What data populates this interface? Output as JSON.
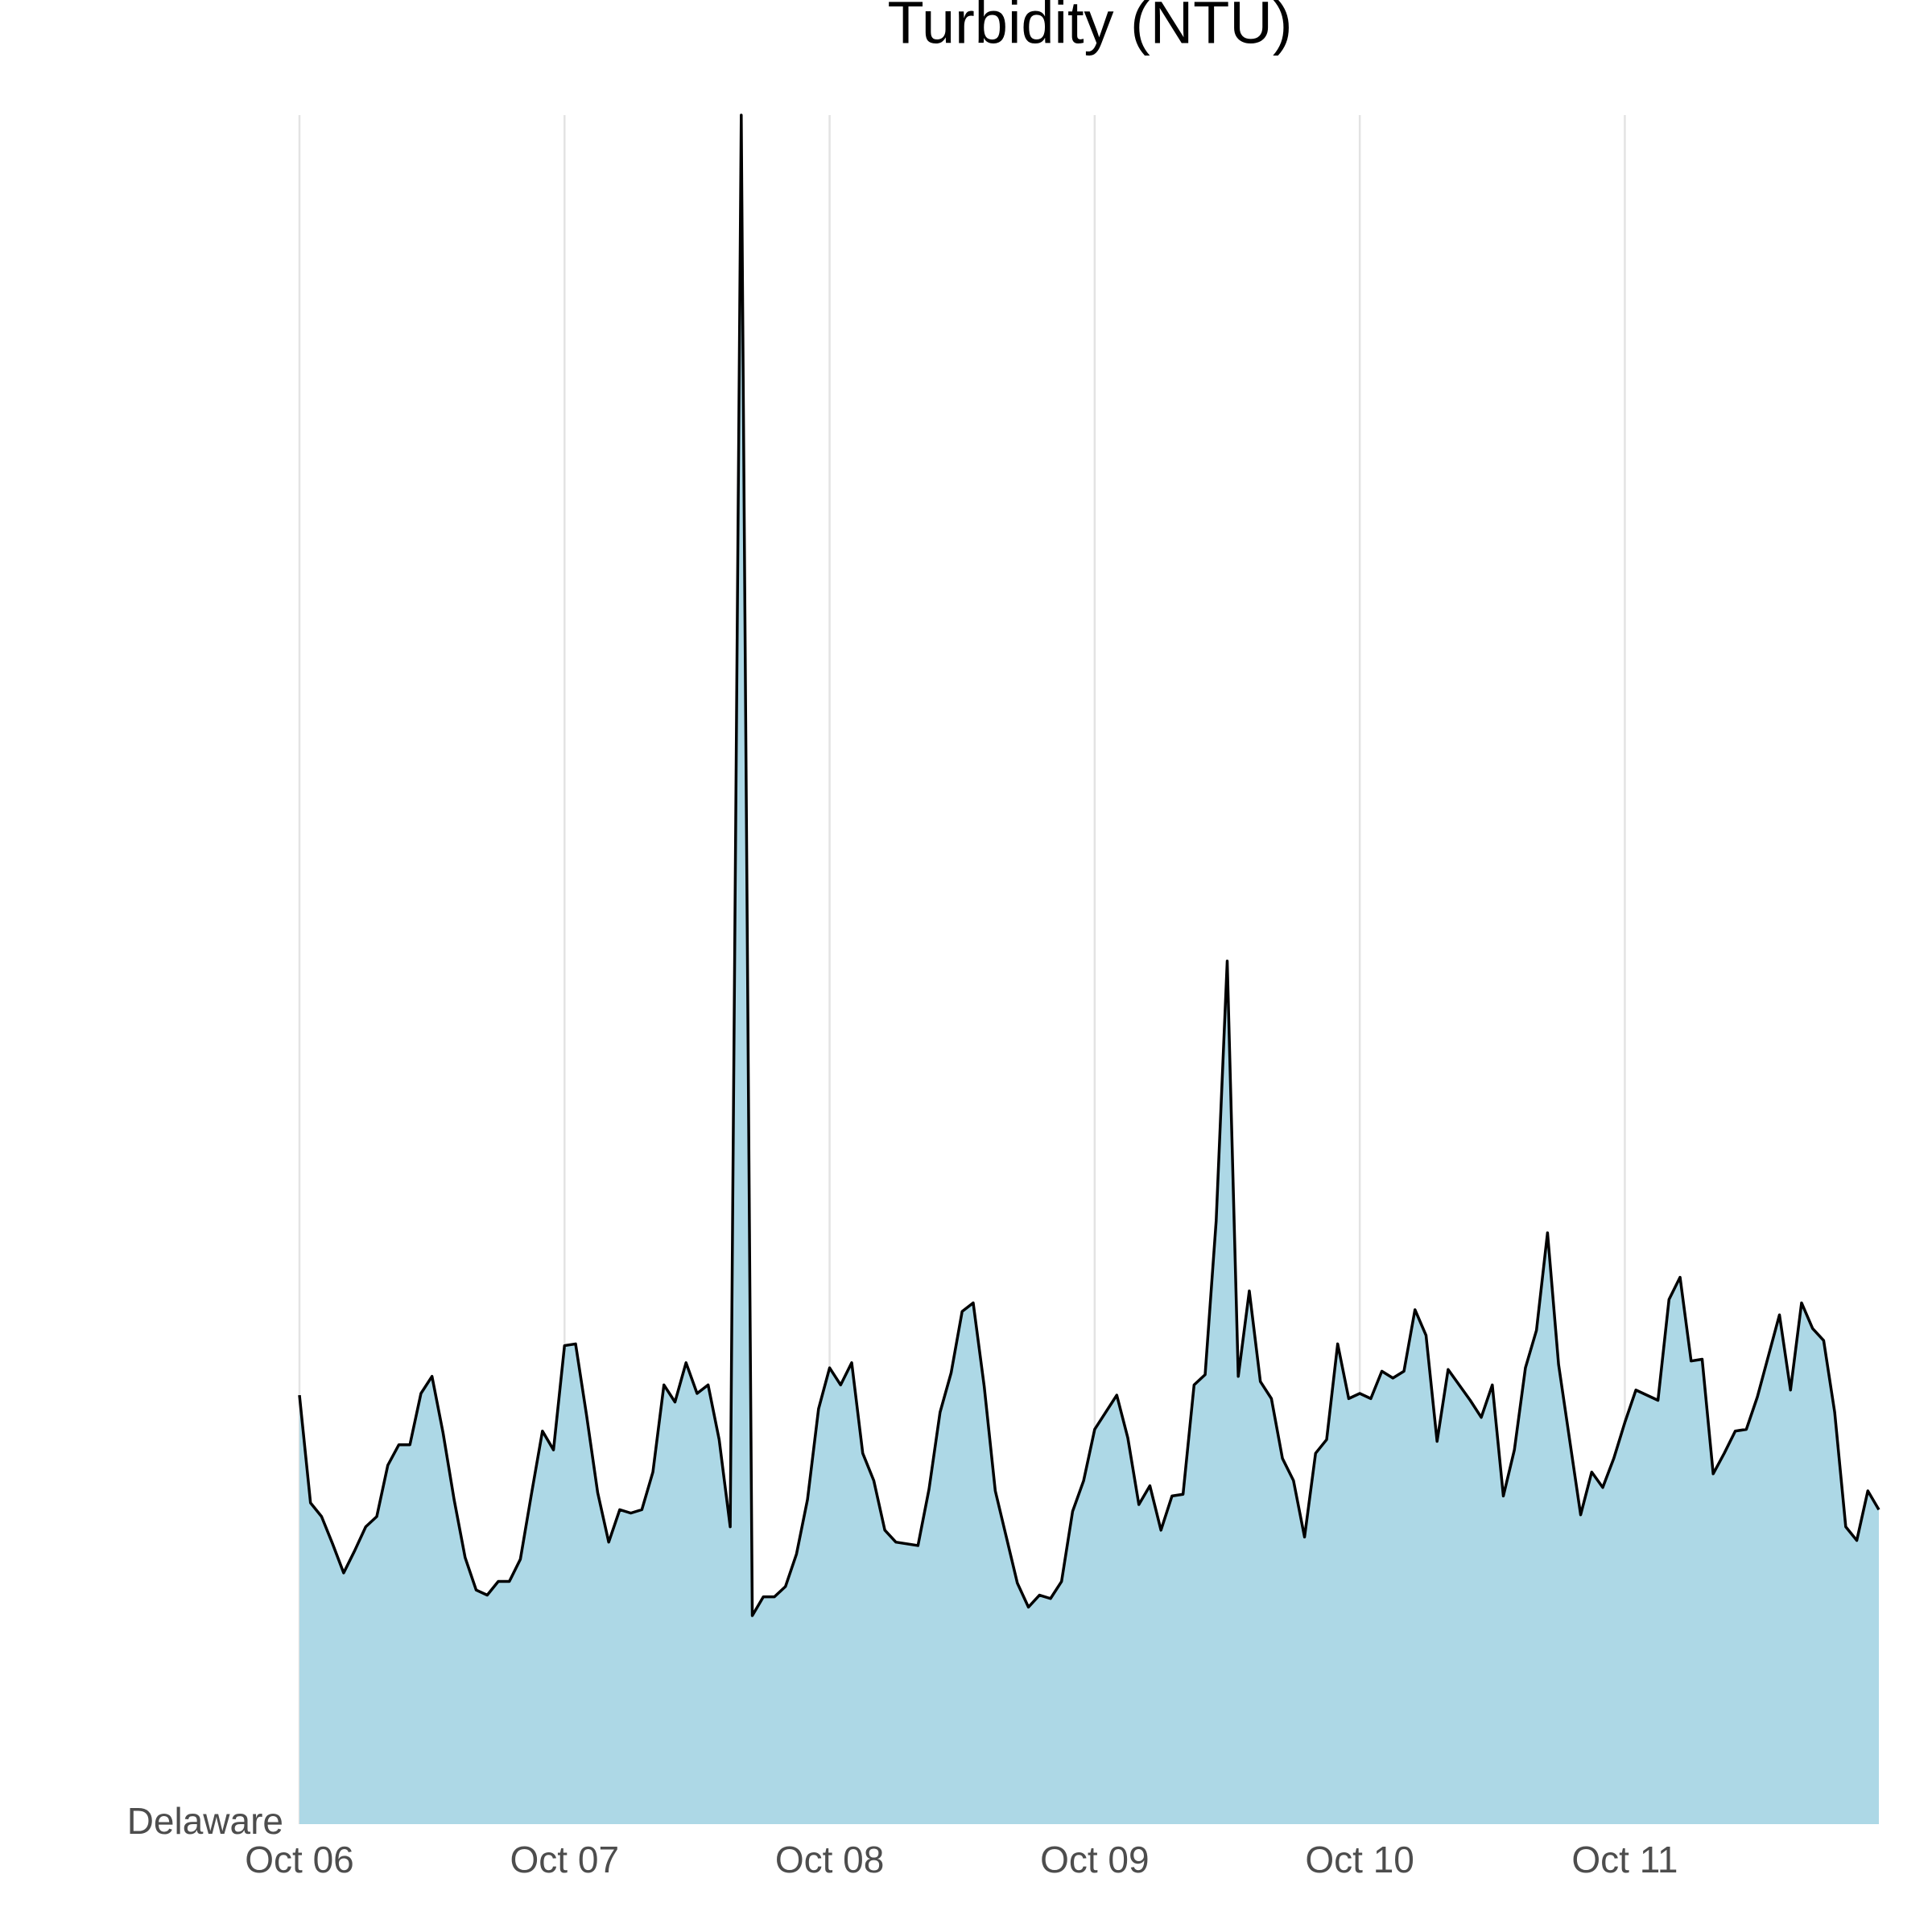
{
  "chart_data": {
    "type": "area",
    "title": "Turbidity (NTU)",
    "x": [
      0,
      1,
      2,
      3,
      4,
      5,
      6,
      7,
      8,
      9,
      10,
      11,
      12,
      13,
      14,
      15,
      16,
      17,
      18,
      19,
      20,
      21,
      22,
      23,
      24,
      25,
      26,
      27,
      28,
      29,
      30,
      31,
      32,
      33,
      34,
      35,
      36,
      37,
      38,
      39,
      40,
      41,
      42,
      43,
      44,
      45,
      46,
      47,
      48,
      49,
      50,
      51,
      52,
      53,
      54,
      55,
      56,
      57,
      58,
      59,
      60,
      61,
      62,
      63,
      64,
      65,
      66,
      67,
      68,
      69,
      70,
      71,
      72,
      73,
      74,
      75,
      76,
      77,
      78,
      79,
      80,
      81,
      82,
      83,
      84,
      85,
      86,
      87,
      88,
      89,
      90,
      91,
      92,
      93,
      94,
      95,
      96,
      97,
      98,
      99,
      100,
      101,
      102,
      103,
      104,
      105,
      106,
      107,
      108,
      109,
      110,
      111,
      112,
      113,
      114,
      115,
      116,
      117,
      118,
      119,
      120,
      121,
      122,
      123,
      124,
      125,
      126,
      127,
      128,
      129,
      130,
      131,
      132,
      133,
      134,
      135,
      136,
      137,
      138,
      139,
      140,
      141,
      142,
      143
    ],
    "series": [
      {
        "name": "Delaware",
        "color": "#add8e6",
        "line_color": "#000000",
        "values": [
          25.1,
          18.8,
          18.0,
          16.4,
          14.7,
          16.0,
          17.4,
          18.0,
          21.0,
          22.2,
          22.2,
          25.2,
          26.2,
          22.9,
          19.0,
          15.6,
          13.7,
          13.4,
          14.2,
          14.2,
          15.5,
          19.3,
          23.0,
          21.9,
          28.0,
          28.1,
          23.9,
          19.4,
          16.5,
          18.4,
          18.2,
          18.4,
          20.6,
          25.7,
          24.7,
          27.0,
          25.2,
          25.7,
          22.5,
          17.4,
          100,
          12.2,
          13.3,
          13.3,
          13.9,
          15.8,
          19.0,
          24.3,
          26.7,
          25.7,
          27.0,
          21.7,
          20.1,
          17.2,
          16.5,
          16.4,
          16.3,
          19.6,
          24.1,
          26.4,
          30.0,
          30.5,
          25.6,
          19.5,
          16.8,
          14.1,
          12.7,
          13.4,
          13.2,
          14.2,
          18.3,
          20.1,
          23.1,
          24.1,
          25.1,
          22.6,
          18.7,
          19.8,
          17.2,
          19.2,
          19.3,
          25.7,
          26.3,
          35.3,
          50.5,
          26.2,
          31.2,
          25.9,
          24.9,
          21.4,
          20.1,
          16.8,
          21.7,
          22.5,
          28.1,
          24.9,
          25.2,
          24.9,
          26.5,
          26.1,
          26.5,
          30.1,
          28.6,
          22.4,
          26.6,
          25.7,
          24.8,
          23.8,
          25.7,
          19.2,
          21.9,
          26.7,
          28.9,
          34.6,
          26.9,
          22.5,
          18.1,
          20.6,
          19.7,
          21.4,
          23.5,
          25.4,
          25.1,
          24.8,
          30.7,
          32.0,
          27.1,
          27.2,
          20.5,
          21.7,
          23.0,
          23.1,
          25.0,
          27.4,
          29.8,
          25.4,
          30.5,
          29.0,
          28.3,
          24.1,
          17.4,
          16.6,
          19.5,
          18.4
        ]
      }
    ],
    "xlim": [
      0,
      143
    ],
    "xticks": [
      {
        "value": 0,
        "label": "Oct 06"
      },
      {
        "value": 24,
        "label": "Oct 07"
      },
      {
        "value": 48,
        "label": "Oct 08"
      },
      {
        "value": 72,
        "label": "Oct 09"
      },
      {
        "value": 96,
        "label": "Oct 10"
      },
      {
        "value": 120,
        "label": "Oct 11"
      }
    ],
    "ylim": [
      0,
      100
    ],
    "grid": true
  }
}
